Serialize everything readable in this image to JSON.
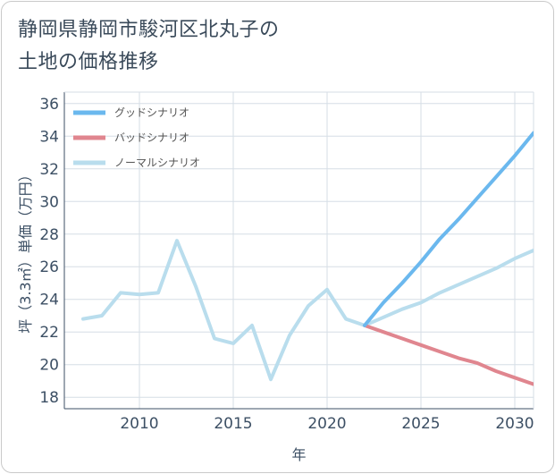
{
  "title_lines": [
    "静岡県静岡市駿河区北丸子の",
    "土地の価格推移"
  ],
  "chart_data": {
    "type": "line",
    "xlabel": "年",
    "ylabel": "坪（3.3㎡）単価（万円）",
    "xlim": [
      2006,
      2031
    ],
    "ylim": [
      17.3,
      36.7
    ],
    "xticks": [
      2010,
      2015,
      2020,
      2025,
      2030
    ],
    "yticks": [
      18,
      20,
      22,
      24,
      26,
      28,
      30,
      32,
      34,
      36
    ],
    "legend_position": "top-left",
    "series": [
      {
        "name": "グッドシナリオ",
        "color": "#6bb8ee",
        "x": [
          2022,
          2023,
          2024,
          2025,
          2026,
          2027,
          2028,
          2029,
          2030,
          2031
        ],
        "y": [
          22.4,
          23.8,
          25.0,
          26.3,
          27.7,
          28.9,
          30.2,
          31.5,
          32.8,
          34.2
        ]
      },
      {
        "name": "バッドシナリオ",
        "color": "#e0868f",
        "x": [
          2022,
          2023,
          2024,
          2025,
          2026,
          2027,
          2028,
          2029,
          2030,
          2031
        ],
        "y": [
          22.4,
          22.0,
          21.6,
          21.2,
          20.8,
          20.4,
          20.1,
          19.6,
          19.2,
          18.8
        ]
      },
      {
        "name": "ノーマルシナリオ",
        "color": "#b9dded",
        "x": [
          2007,
          2008,
          2009,
          2010,
          2011,
          2012,
          2013,
          2014,
          2015,
          2016,
          2017,
          2018,
          2019,
          2020,
          2021,
          2022,
          2023,
          2024,
          2025,
          2026,
          2027,
          2028,
          2029,
          2030,
          2031
        ],
        "y": [
          22.8,
          23.0,
          24.4,
          24.3,
          24.4,
          27.6,
          24.8,
          21.6,
          21.3,
          22.4,
          19.1,
          21.8,
          23.6,
          24.6,
          22.8,
          22.4,
          22.9,
          23.4,
          23.8,
          24.4,
          24.9,
          25.4,
          25.9,
          26.5,
          27.0
        ]
      }
    ]
  }
}
